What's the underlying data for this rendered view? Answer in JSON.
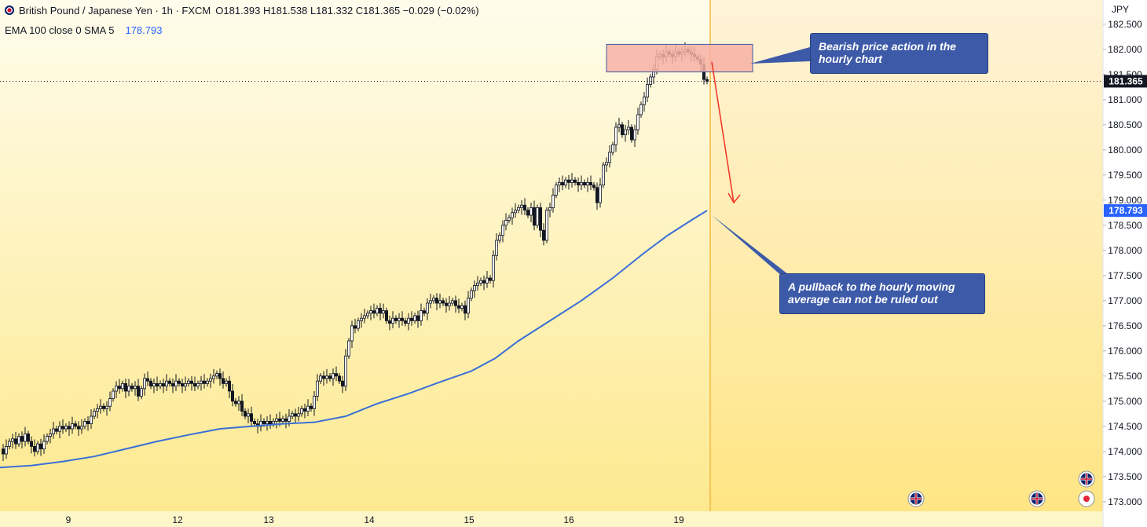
{
  "header": {
    "symbol": "British Pound / Japanese Yen · 1h · FXCM",
    "ohlc": "O181.393 H181.538 L181.332 C181.365 −0.029 (−0.02%)",
    "indicator_label": "EMA 100 close 0 SMA 5",
    "indicator_value": "178.793"
  },
  "axis": {
    "currency": "JPY",
    "price_labels": [
      "182.500",
      "182.000",
      "181.500",
      "181.000",
      "180.500",
      "180.000",
      "179.500",
      "179.000",
      "178.500",
      "178.000",
      "177.500",
      "177.000",
      "176.500",
      "176.000",
      "175.500",
      "175.000",
      "174.500",
      "174.000",
      "173.500",
      "173.000"
    ],
    "last_price": "181.365",
    "ema_price": "178.793",
    "date_labels": [
      "9",
      "12",
      "13",
      "14",
      "15",
      "16",
      "19"
    ]
  },
  "annotations": {
    "bearish_text": "Bearish price action in the hourly chart",
    "pullback_text": "A pullback to the hourly moving average can not be ruled out"
  },
  "colors": {
    "background_top": "#fffbe0",
    "background_bottom": "#fde98a",
    "candle": "#131722",
    "ema": "#3a6fd8",
    "resistance_box": "#f7b0a4",
    "arrow": "#f23a2a",
    "callout": "#3d5aa8",
    "future_divider": "#f5b942"
  },
  "chart_data": {
    "type": "candlestick",
    "title": "British Pound / Japanese Yen · 1h · FXCM",
    "ylim": [
      172.95,
      182.95
    ],
    "price_ticks": [
      173.0,
      173.5,
      174.0,
      174.5,
      175.0,
      175.5,
      176.0,
      176.5,
      177.0,
      177.5,
      178.0,
      178.5,
      179.0,
      179.5,
      180.0,
      180.5,
      181.0,
      181.5,
      182.0,
      182.5
    ],
    "close_path": [
      [
        0,
        174.05
      ],
      [
        4,
        173.95
      ],
      [
        8,
        174.1
      ],
      [
        12,
        174.2
      ],
      [
        16,
        174.25
      ],
      [
        20,
        174.15
      ],
      [
        24,
        174.3
      ],
      [
        28,
        174.2
      ],
      [
        32,
        174.35
      ],
      [
        36,
        174.2
      ],
      [
        40,
        174.1
      ],
      [
        44,
        174.0
      ],
      [
        48,
        174.15
      ],
      [
        52,
        174.05
      ],
      [
        56,
        174.2
      ],
      [
        60,
        174.3
      ],
      [
        64,
        174.35
      ],
      [
        68,
        174.45
      ],
      [
        72,
        174.4
      ],
      [
        76,
        174.5
      ],
      [
        80,
        174.45
      ],
      [
        84,
        174.5
      ],
      [
        88,
        174.45
      ],
      [
        92,
        174.55
      ],
      [
        96,
        174.5
      ],
      [
        100,
        174.45
      ],
      [
        104,
        174.5
      ],
      [
        108,
        174.6
      ],
      [
        112,
        174.55
      ],
      [
        116,
        174.7
      ],
      [
        120,
        174.8
      ],
      [
        124,
        174.85
      ],
      [
        128,
        174.9
      ],
      [
        132,
        174.85
      ],
      [
        136,
        174.9
      ],
      [
        140,
        175.05
      ],
      [
        144,
        175.2
      ],
      [
        148,
        175.3
      ],
      [
        152,
        175.25
      ],
      [
        156,
        175.35
      ],
      [
        160,
        175.2
      ],
      [
        164,
        175.3
      ],
      [
        168,
        175.25
      ],
      [
        172,
        175.3
      ],
      [
        176,
        175.1
      ],
      [
        180,
        175.25
      ],
      [
        184,
        175.45
      ],
      [
        188,
        175.4
      ],
      [
        192,
        175.3
      ],
      [
        196,
        175.35
      ],
      [
        200,
        175.3
      ],
      [
        204,
        175.35
      ],
      [
        208,
        175.3
      ],
      [
        212,
        175.4
      ],
      [
        216,
        175.35
      ],
      [
        220,
        175.3
      ],
      [
        224,
        175.4
      ],
      [
        228,
        175.35
      ],
      [
        232,
        175.3
      ],
      [
        236,
        175.35
      ],
      [
        240,
        175.4
      ],
      [
        244,
        175.35
      ],
      [
        248,
        175.3
      ],
      [
        252,
        175.35
      ],
      [
        256,
        175.4
      ],
      [
        260,
        175.35
      ],
      [
        264,
        175.4
      ],
      [
        268,
        175.45
      ],
      [
        272,
        175.5
      ],
      [
        276,
        175.55
      ],
      [
        280,
        175.45
      ],
      [
        284,
        175.35
      ],
      [
        288,
        175.4
      ],
      [
        292,
        175.2
      ],
      [
        296,
        175.0
      ],
      [
        300,
        174.95
      ],
      [
        304,
        175.0
      ],
      [
        308,
        174.8
      ],
      [
        312,
        174.7
      ],
      [
        316,
        174.75
      ],
      [
        320,
        174.6
      ],
      [
        324,
        174.55
      ],
      [
        328,
        174.5
      ],
      [
        332,
        174.6
      ],
      [
        336,
        174.55
      ],
      [
        340,
        174.6
      ],
      [
        344,
        174.55
      ],
      [
        348,
        174.6
      ],
      [
        352,
        174.65
      ],
      [
        356,
        174.6
      ],
      [
        360,
        174.65
      ],
      [
        364,
        174.6
      ],
      [
        368,
        174.7
      ],
      [
        372,
        174.75
      ],
      [
        376,
        174.7
      ],
      [
        380,
        174.75
      ],
      [
        384,
        174.85
      ],
      [
        388,
        174.8
      ],
      [
        392,
        174.9
      ],
      [
        396,
        174.85
      ],
      [
        400,
        175.1
      ],
      [
        404,
        175.4
      ],
      [
        408,
        175.5
      ],
      [
        412,
        175.45
      ],
      [
        416,
        175.5
      ],
      [
        420,
        175.45
      ],
      [
        424,
        175.55
      ],
      [
        428,
        175.5
      ],
      [
        432,
        175.4
      ],
      [
        436,
        175.3
      ],
      [
        440,
        175.9
      ],
      [
        444,
        176.2
      ],
      [
        448,
        176.5
      ],
      [
        452,
        176.45
      ],
      [
        456,
        176.6
      ],
      [
        460,
        176.65
      ],
      [
        464,
        176.7
      ],
      [
        468,
        176.75
      ],
      [
        472,
        176.8
      ],
      [
        476,
        176.75
      ],
      [
        480,
        176.85
      ],
      [
        484,
        176.75
      ],
      [
        488,
        176.8
      ],
      [
        492,
        176.6
      ],
      [
        496,
        176.55
      ],
      [
        500,
        176.65
      ],
      [
        504,
        176.6
      ],
      [
        508,
        176.65
      ],
      [
        512,
        176.6
      ],
      [
        516,
        176.55
      ],
      [
        520,
        176.65
      ],
      [
        524,
        176.6
      ],
      [
        528,
        176.7
      ],
      [
        532,
        176.6
      ],
      [
        536,
        176.8
      ],
      [
        540,
        176.75
      ],
      [
        544,
        176.95
      ],
      [
        548,
        177.0
      ],
      [
        552,
        177.05
      ],
      [
        556,
        176.95
      ],
      [
        560,
        177.0
      ],
      [
        564,
        176.95
      ],
      [
        568,
        176.9
      ],
      [
        572,
        176.95
      ],
      [
        576,
        177.0
      ],
      [
        580,
        176.9
      ],
      [
        584,
        176.85
      ],
      [
        588,
        176.9
      ],
      [
        592,
        176.75
      ],
      [
        596,
        177.05
      ],
      [
        600,
        177.2
      ],
      [
        604,
        177.3
      ],
      [
        608,
        177.35
      ],
      [
        612,
        177.4
      ],
      [
        616,
        177.35
      ],
      [
        620,
        177.45
      ],
      [
        624,
        177.4
      ],
      [
        628,
        177.9
      ],
      [
        632,
        178.2
      ],
      [
        636,
        178.3
      ],
      [
        640,
        178.5
      ],
      [
        644,
        178.6
      ],
      [
        648,
        178.65
      ],
      [
        652,
        178.75
      ],
      [
        656,
        178.8
      ],
      [
        660,
        178.85
      ],
      [
        664,
        178.9
      ],
      [
        668,
        178.8
      ],
      [
        672,
        178.7
      ],
      [
        676,
        178.85
      ],
      [
        680,
        178.5
      ],
      [
        684,
        178.85
      ],
      [
        688,
        178.4
      ],
      [
        692,
        178.2
      ],
      [
        696,
        178.8
      ],
      [
        700,
        178.85
      ],
      [
        704,
        179.1
      ],
      [
        708,
        179.3
      ],
      [
        712,
        179.35
      ],
      [
        716,
        179.3
      ],
      [
        720,
        179.4
      ],
      [
        724,
        179.35
      ],
      [
        728,
        179.4
      ],
      [
        732,
        179.35
      ],
      [
        736,
        179.3
      ],
      [
        740,
        179.35
      ],
      [
        744,
        179.3
      ],
      [
        748,
        179.35
      ],
      [
        752,
        179.3
      ],
      [
        756,
        179.25
      ],
      [
        760,
        178.95
      ],
      [
        764,
        179.3
      ],
      [
        768,
        179.7
      ],
      [
        772,
        179.75
      ],
      [
        776,
        179.95
      ],
      [
        780,
        180.1
      ],
      [
        784,
        180.45
      ],
      [
        788,
        180.5
      ],
      [
        792,
        180.3
      ],
      [
        796,
        180.4
      ],
      [
        800,
        180.45
      ],
      [
        804,
        180.2
      ],
      [
        808,
        180.4
      ],
      [
        812,
        180.7
      ],
      [
        816,
        180.9
      ],
      [
        820,
        181.05
      ],
      [
        824,
        181.3
      ],
      [
        828,
        181.45
      ],
      [
        832,
        181.6
      ],
      [
        836,
        181.85
      ],
      [
        840,
        181.9
      ],
      [
        844,
        181.85
      ],
      [
        848,
        181.95
      ],
      [
        852,
        181.9
      ],
      [
        856,
        181.85
      ],
      [
        860,
        181.95
      ],
      [
        864,
        181.9
      ],
      [
        868,
        181.95
      ],
      [
        872,
        182.0
      ],
      [
        876,
        181.95
      ],
      [
        880,
        181.9
      ],
      [
        884,
        181.85
      ],
      [
        888,
        181.8
      ],
      [
        892,
        181.7
      ],
      [
        896,
        181.4
      ],
      [
        900,
        181.365
      ]
    ],
    "ema": {
      "name": "EMA 100 close 0 SMA 5",
      "last_value": 178.793,
      "points": [
        [
          0,
          173.68
        ],
        [
          40,
          173.72
        ],
        [
          80,
          173.8
        ],
        [
          120,
          173.9
        ],
        [
          160,
          174.05
        ],
        [
          200,
          174.2
        ],
        [
          240,
          174.33
        ],
        [
          280,
          174.45
        ],
        [
          320,
          174.5
        ],
        [
          360,
          174.55
        ],
        [
          400,
          174.58
        ],
        [
          440,
          174.7
        ],
        [
          480,
          174.95
        ],
        [
          520,
          175.15
        ],
        [
          560,
          175.38
        ],
        [
          600,
          175.6
        ],
        [
          630,
          175.85
        ],
        [
          660,
          176.2
        ],
        [
          700,
          176.6
        ],
        [
          740,
          177.0
        ],
        [
          780,
          177.45
        ],
        [
          820,
          177.95
        ],
        [
          850,
          178.3
        ],
        [
          880,
          178.6
        ],
        [
          900,
          178.793
        ]
      ]
    },
    "resistance_zone": {
      "x_from": 772,
      "x_to": 958,
      "y_from": 181.55,
      "y_to": 182.1
    },
    "projection": {
      "from": [
        906,
        181.75
      ],
      "to": [
        934,
        178.95
      ]
    },
    "date_ticks": [
      [
        87,
        "9"
      ],
      [
        226,
        "12"
      ],
      [
        342,
        "13"
      ],
      [
        470,
        "14"
      ],
      [
        597,
        "15"
      ],
      [
        724,
        "16"
      ],
      [
        864,
        "19"
      ]
    ]
  }
}
